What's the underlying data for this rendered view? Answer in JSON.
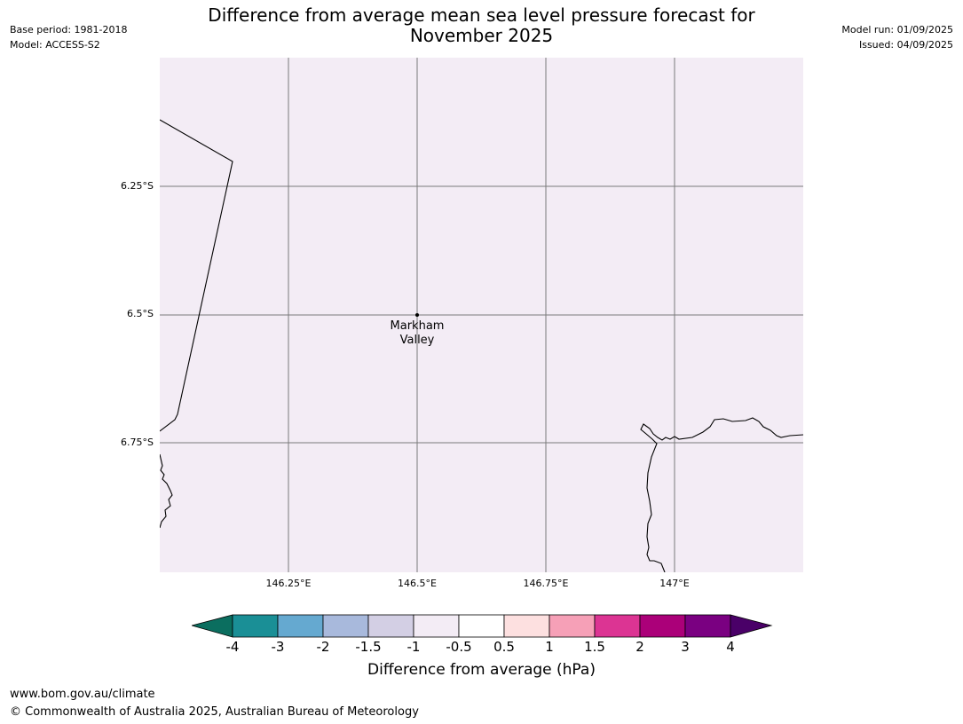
{
  "meta": {
    "base_period": "Base period: 1981-2018",
    "model": "Model: ACCESS-S2",
    "model_run": "Model run: 01/09/2025",
    "issued": "Issued: 04/09/2025"
  },
  "title_line1": "Difference from average mean sea level pressure forecast for",
  "title_line2": "November 2025",
  "map": {
    "background": "#f3ecf5",
    "lat_labels": [
      "6.25°S",
      "6.5°S",
      "6.75°S"
    ],
    "lon_labels": [
      "146.25°E",
      "146.5°E",
      "146.75°E",
      "147°E"
    ],
    "place": {
      "name_line1": "Markham",
      "name_line2": "Valley",
      "lat": -6.5,
      "lon": 146.5
    }
  },
  "colorbar": {
    "title": "Difference from average (hPa)",
    "ticks": [
      "-4",
      "-3",
      "-2",
      "-1.5",
      "-1",
      "-0.5",
      "0.5",
      "1",
      "1.5",
      "2",
      "3",
      "4"
    ],
    "colors": [
      "#0b6e5f",
      "#1a8f96",
      "#65a9d0",
      "#a8b9dc",
      "#d3cfe4",
      "#f3ecf5",
      "#ffffff",
      "#fde0e0",
      "#f6a0b7",
      "#dc3493",
      "#ab0079",
      "#7a0081",
      "#4a0068"
    ]
  },
  "footer": {
    "url": "www.bom.gov.au/climate",
    "copyright": "© Commonwealth of Australia 2025, Australian Bureau of Meteorology"
  }
}
